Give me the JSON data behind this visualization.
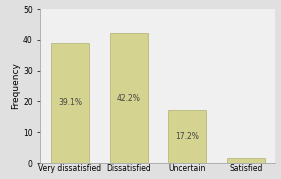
{
  "categories": [
    "Very dissatisfied",
    "Dissatisfied",
    "Uncertain",
    "Satisfied"
  ],
  "values": [
    39.1,
    42.2,
    17.2,
    1.6
  ],
  "bar_color": "#d4d490",
  "bar_edgecolor": "#b0b070",
  "ylabel": "Frequency",
  "ylim": [
    0,
    50
  ],
  "yticks": [
    0,
    10,
    20,
    30,
    40,
    50
  ],
  "plot_bg_color": "#f0f0f0",
  "fig_bg_color": "#e0e0e0",
  "label_fontsize": 5.5,
  "axis_fontsize": 6.5,
  "tick_fontsize": 5.5,
  "bar_width": 0.65
}
